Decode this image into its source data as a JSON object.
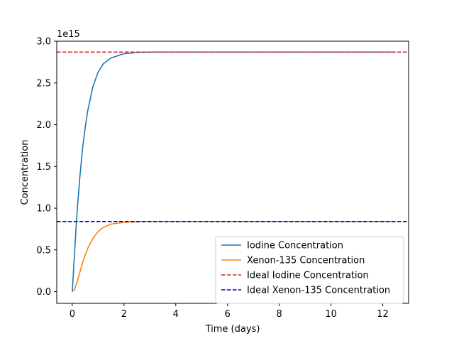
{
  "chart_data": {
    "type": "line",
    "xlabel": "Time (days)",
    "ylabel": "Concentration",
    "y_scale_label": "1e15",
    "xlim": [
      -0.6,
      13.0
    ],
    "ylim": [
      -0.14,
      3.0
    ],
    "x_ticks": [
      0,
      2,
      4,
      6,
      8,
      10,
      12
    ],
    "x_tick_labels": [
      "0",
      "2",
      "4",
      "6",
      "8",
      "10",
      "12"
    ],
    "y_ticks": [
      0.0,
      0.5,
      1.0,
      1.5,
      2.0,
      2.5,
      3.0
    ],
    "y_tick_labels": [
      "0.0",
      "0.5",
      "1.0",
      "1.5",
      "2.0",
      "2.5",
      "3.0"
    ],
    "grid": false,
    "legend_position": "lower-right",
    "series": [
      {
        "name": "Iodine Concentration",
        "color": "#1f77b4",
        "style": "solid",
        "x": [
          0,
          0.05,
          0.1,
          0.15,
          0.2,
          0.3,
          0.4,
          0.5,
          0.6,
          0.8,
          1.0,
          1.2,
          1.5,
          2.0,
          2.5,
          3.0,
          4.0,
          6.0,
          8.0,
          10.0,
          12.5
        ],
        "y": [
          0.0,
          0.26,
          0.52,
          0.78,
          1.01,
          1.4,
          1.72,
          1.97,
          2.17,
          2.46,
          2.63,
          2.73,
          2.8,
          2.85,
          2.865,
          2.87,
          2.87,
          2.87,
          2.87,
          2.87,
          2.87
        ]
      },
      {
        "name": "Xenon-135 Concentration",
        "color": "#ff7f0e",
        "style": "solid",
        "x": [
          0,
          0.05,
          0.1,
          0.2,
          0.3,
          0.4,
          0.5,
          0.6,
          0.8,
          1.0,
          1.2,
          1.5,
          2.0,
          2.5,
          3.0,
          4.0,
          6.0,
          8.0,
          10.0,
          12.5
        ],
        "y": [
          0.0,
          0.01,
          0.04,
          0.13,
          0.24,
          0.35,
          0.44,
          0.52,
          0.64,
          0.72,
          0.77,
          0.81,
          0.83,
          0.837,
          0.84,
          0.84,
          0.84,
          0.84,
          0.84,
          0.84
        ]
      },
      {
        "name": "Ideal Iodine Concentration",
        "color": "#d62728",
        "style": "dashed",
        "x": [
          -0.6,
          13.0
        ],
        "y": [
          2.87,
          2.87
        ]
      },
      {
        "name": "Ideal Xenon-135 Concentration",
        "color": "#0000cc",
        "style": "dashed",
        "x": [
          -0.6,
          13.0
        ],
        "y": [
          0.84,
          0.84
        ]
      }
    ]
  }
}
